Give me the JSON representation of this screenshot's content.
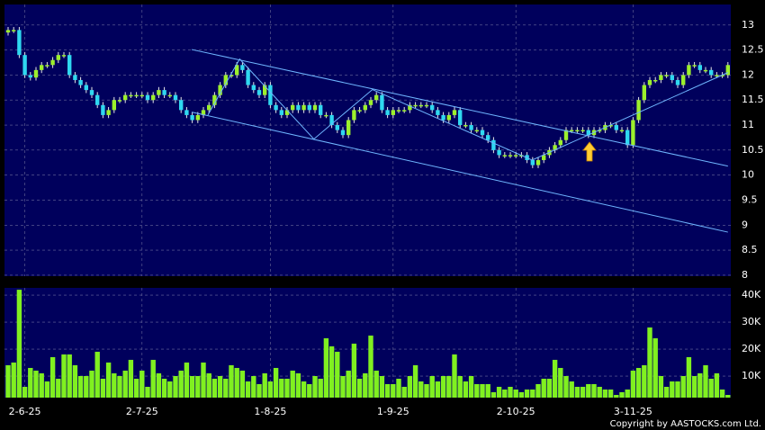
{
  "chart_data": [
    {
      "type": "candlestick",
      "up_color": "#9cf02c",
      "down_color": "#2fd8f0",
      "grid": true,
      "ylim": [
        7.98,
        13.41
      ],
      "yticks": [
        8,
        8.5,
        9,
        9.5,
        10,
        10.5,
        11,
        11.5,
        12,
        12.5,
        13
      ],
      "categories": [
        null,
        null,
        null,
        "2-6-25",
        null,
        null,
        null,
        null,
        null,
        null,
        null,
        null,
        null,
        null,
        null,
        null,
        null,
        null,
        null,
        null,
        null,
        null,
        null,
        null,
        "2-7-25",
        null,
        null,
        null,
        null,
        null,
        null,
        null,
        null,
        null,
        null,
        null,
        null,
        null,
        null,
        null,
        null,
        null,
        null,
        null,
        null,
        null,
        null,
        "1-8-25",
        null,
        null,
        null,
        null,
        null,
        null,
        null,
        null,
        null,
        null,
        null,
        null,
        null,
        null,
        null,
        null,
        null,
        null,
        null,
        null,
        null,
        "1-9-25",
        null,
        null,
        null,
        null,
        null,
        null,
        null,
        null,
        null,
        null,
        null,
        null,
        null,
        null,
        null,
        null,
        null,
        null,
        null,
        null,
        null,
        "2-10-25",
        null,
        null,
        null,
        null,
        null,
        null,
        null,
        null,
        null,
        null,
        null,
        null,
        null,
        null,
        null,
        null,
        null,
        null,
        null,
        null,
        "3-11-25",
        null,
        null,
        null,
        null,
        null,
        null,
        null,
        null,
        null,
        null,
        null,
        null,
        null,
        null,
        null,
        null,
        null
      ],
      "open": [
        12.85,
        12.9,
        12.9,
        12.4,
        12.0,
        11.95,
        12.1,
        12.2,
        12.2,
        12.3,
        12.4,
        12.4,
        12.0,
        11.9,
        11.8,
        11.7,
        11.6,
        11.4,
        11.2,
        11.3,
        11.5,
        11.5,
        11.6,
        11.6,
        11.6,
        11.6,
        11.5,
        11.6,
        11.7,
        11.6,
        11.6,
        11.5,
        11.3,
        11.2,
        11.1,
        11.2,
        11.3,
        11.4,
        11.6,
        11.8,
        12.0,
        12.0,
        12.2,
        12.1,
        11.8,
        11.7,
        11.6,
        11.8,
        11.4,
        11.3,
        11.2,
        11.3,
        11.4,
        11.3,
        11.4,
        11.3,
        11.4,
        11.2,
        11.2,
        11.0,
        10.9,
        10.8,
        11.1,
        11.3,
        11.3,
        11.4,
        11.5,
        11.6,
        11.3,
        11.2,
        11.3,
        11.3,
        11.3,
        11.4,
        11.4,
        11.4,
        11.4,
        11.3,
        11.2,
        11.1,
        11.2,
        11.3,
        11.0,
        11.0,
        10.9,
        10.9,
        10.8,
        10.7,
        10.5,
        10.4,
        10.4,
        10.4,
        10.4,
        10.4,
        10.3,
        10.2,
        10.3,
        10.4,
        10.5,
        10.6,
        10.7,
        10.9,
        10.9,
        10.9,
        10.9,
        10.8,
        10.9,
        10.9,
        11.0,
        11.0,
        10.9,
        10.9,
        10.6,
        11.1,
        11.5,
        11.8,
        11.9,
        11.9,
        12.0,
        12.0,
        11.9,
        11.8,
        12.0,
        12.2,
        12.2,
        12.1,
        12.1,
        12.0,
        12.0,
        12.0
      ],
      "high": [
        12.96,
        12.96,
        12.96,
        12.46,
        12.06,
        12.16,
        12.26,
        12.26,
        12.36,
        12.46,
        12.46,
        12.46,
        12.06,
        11.96,
        11.86,
        11.76,
        11.66,
        11.46,
        11.36,
        11.56,
        11.56,
        11.66,
        11.66,
        11.66,
        11.66,
        11.66,
        11.66,
        11.76,
        11.76,
        11.66,
        11.66,
        11.56,
        11.36,
        11.26,
        11.26,
        11.36,
        11.46,
        11.66,
        11.86,
        12.06,
        12.06,
        12.26,
        12.26,
        12.16,
        11.86,
        11.76,
        11.86,
        11.86,
        11.46,
        11.36,
        11.36,
        11.46,
        11.46,
        11.46,
        11.46,
        11.46,
        11.46,
        11.26,
        11.26,
        11.06,
        10.96,
        11.16,
        11.36,
        11.36,
        11.46,
        11.56,
        11.66,
        11.66,
        11.36,
        11.36,
        11.36,
        11.36,
        11.46,
        11.46,
        11.46,
        11.46,
        11.46,
        11.36,
        11.26,
        11.26,
        11.36,
        11.36,
        11.06,
        11.06,
        10.96,
        10.96,
        10.86,
        10.76,
        10.56,
        10.46,
        10.46,
        10.46,
        10.46,
        10.46,
        10.36,
        10.36,
        10.46,
        10.56,
        10.66,
        10.76,
        10.96,
        10.96,
        10.96,
        10.96,
        10.96,
        10.96,
        10.96,
        11.06,
        11.06,
        11.06,
        10.96,
        10.96,
        11.16,
        11.56,
        11.86,
        11.96,
        11.96,
        12.06,
        12.06,
        12.06,
        11.96,
        12.06,
        12.26,
        12.26,
        12.26,
        12.16,
        12.16,
        12.06,
        12.06,
        12.26
      ],
      "low": [
        12.79,
        12.84,
        12.34,
        11.94,
        11.89,
        11.89,
        12.04,
        12.14,
        12.14,
        12.24,
        12.34,
        11.94,
        11.84,
        11.74,
        11.64,
        11.54,
        11.34,
        11.14,
        11.14,
        11.24,
        11.44,
        11.44,
        11.54,
        11.54,
        11.54,
        11.44,
        11.44,
        11.54,
        11.54,
        11.54,
        11.44,
        11.24,
        11.14,
        11.04,
        11.04,
        11.14,
        11.24,
        11.34,
        11.54,
        11.74,
        11.94,
        11.94,
        12.04,
        11.74,
        11.64,
        11.54,
        11.54,
        11.34,
        11.24,
        11.14,
        11.14,
        11.24,
        11.24,
        11.24,
        11.24,
        11.24,
        11.14,
        11.14,
        10.94,
        10.84,
        10.74,
        10.74,
        11.04,
        11.24,
        11.24,
        11.34,
        11.44,
        11.24,
        11.14,
        11.14,
        11.24,
        11.24,
        11.24,
        11.34,
        11.34,
        11.34,
        11.24,
        11.14,
        11.04,
        11.04,
        11.14,
        10.94,
        10.94,
        10.84,
        10.84,
        10.74,
        10.64,
        10.44,
        10.34,
        10.34,
        10.34,
        10.34,
        10.34,
        10.24,
        10.14,
        10.14,
        10.24,
        10.34,
        10.44,
        10.54,
        10.64,
        10.84,
        10.84,
        10.84,
        10.74,
        10.74,
        10.84,
        10.84,
        10.94,
        10.84,
        10.84,
        10.54,
        10.54,
        11.04,
        11.44,
        11.74,
        11.84,
        11.84,
        11.94,
        11.84,
        11.74,
        11.74,
        11.94,
        12.14,
        12.04,
        12.04,
        11.94,
        11.94,
        11.94,
        11.94
      ],
      "close": [
        12.9,
        12.9,
        12.4,
        12.0,
        11.95,
        12.1,
        12.2,
        12.2,
        12.3,
        12.4,
        12.4,
        12.0,
        11.9,
        11.8,
        11.7,
        11.6,
        11.4,
        11.2,
        11.3,
        11.5,
        11.5,
        11.6,
        11.6,
        11.6,
        11.6,
        11.5,
        11.6,
        11.7,
        11.6,
        11.6,
        11.5,
        11.3,
        11.2,
        11.1,
        11.2,
        11.3,
        11.4,
        11.6,
        11.8,
        12.0,
        12.0,
        12.2,
        12.1,
        11.8,
        11.7,
        11.6,
        11.8,
        11.4,
        11.3,
        11.2,
        11.3,
        11.4,
        11.3,
        11.4,
        11.3,
        11.4,
        11.2,
        11.2,
        11.0,
        10.9,
        10.8,
        11.1,
        11.3,
        11.3,
        11.4,
        11.5,
        11.6,
        11.3,
        11.2,
        11.3,
        11.3,
        11.3,
        11.4,
        11.4,
        11.4,
        11.4,
        11.3,
        11.2,
        11.1,
        11.2,
        11.3,
        11.0,
        11.0,
        10.9,
        10.9,
        10.8,
        10.7,
        10.5,
        10.4,
        10.4,
        10.4,
        10.4,
        10.4,
        10.3,
        10.2,
        10.3,
        10.4,
        10.5,
        10.6,
        10.7,
        10.9,
        10.9,
        10.9,
        10.9,
        10.8,
        10.9,
        10.9,
        11.0,
        11.0,
        10.9,
        10.9,
        10.6,
        11.1,
        11.5,
        11.8,
        11.9,
        11.9,
        12.0,
        12.0,
        11.9,
        11.8,
        12.0,
        12.2,
        12.2,
        12.1,
        12.1,
        12.0,
        12.0,
        12.0,
        12.2
      ],
      "lines_color": "#6fb6ff",
      "lines": [
        {
          "x": [
            32.9,
            129
          ],
          "y": [
            12.51,
            10.18
          ]
        },
        {
          "x": [
            32.9,
            129
          ],
          "y": [
            11.26,
            8.86
          ]
        },
        {
          "x": [
            35.8,
            41.5,
            54.8,
            65.3,
            93.9,
            129
          ],
          "y": [
            11.2,
            12.32,
            10.72,
            11.71,
            10.3,
            12.05
          ]
        }
      ]
    },
    {
      "type": "bar",
      "color": "#80f020",
      "grid": true,
      "ylim": [
        2000,
        42700
      ],
      "yticks": [
        {
          "value": 10000,
          "label": "10K"
        },
        {
          "value": 20000,
          "label": "20K"
        },
        {
          "value": 30000,
          "label": "30K"
        },
        {
          "value": 40000,
          "label": "40K"
        }
      ],
      "values": [
        14000,
        15000,
        42000,
        6000,
        13000,
        12000,
        11000,
        8000,
        17000,
        9000,
        18000,
        18000,
        14000,
        10000,
        10000,
        12000,
        19000,
        9000,
        15000,
        11000,
        10000,
        12000,
        16000,
        9000,
        12000,
        6000,
        16000,
        11000,
        9000,
        8000,
        10000,
        12000,
        15000,
        10000,
        10000,
        15000,
        11000,
        9000,
        10000,
        9000,
        14000,
        13000,
        12000,
        8000,
        10000,
        7000,
        11000,
        8000,
        13000,
        9000,
        9000,
        12000,
        11000,
        8000,
        7000,
        10000,
        9000,
        24000,
        21000,
        19000,
        10000,
        12000,
        22000,
        9000,
        11000,
        25000,
        12000,
        10000,
        7000,
        7000,
        9000,
        6000,
        10000,
        14000,
        8000,
        7000,
        10000,
        8000,
        10000,
        10000,
        18000,
        10000,
        8000,
        10000,
        7000,
        7000,
        7000,
        4000,
        6000,
        5000,
        6000,
        5000,
        4000,
        5000,
        5000,
        7000,
        9000,
        9000,
        16000,
        13000,
        10000,
        8000,
        6000,
        6000,
        7000,
        7000,
        6000,
        5000,
        5000,
        3000,
        4000,
        5000,
        12000,
        13000,
        14000,
        28000,
        24000,
        10000,
        6000,
        8000,
        8000,
        10000,
        17000,
        10000,
        11000,
        14000,
        9000,
        11000,
        5000,
        3000
      ]
    }
  ],
  "credit": "Copyright by AASTOCKS.com Ltd."
}
